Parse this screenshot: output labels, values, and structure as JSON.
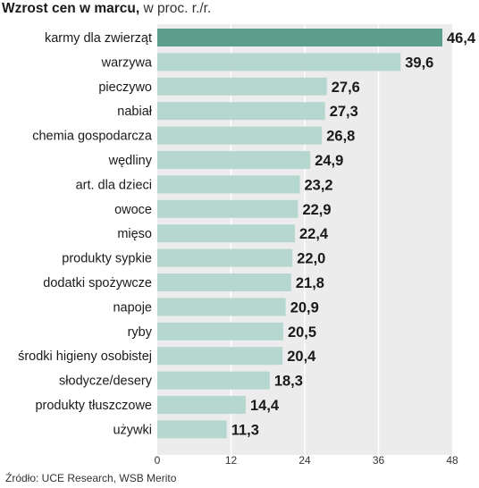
{
  "title": {
    "bold": "Wzrost cen w marcu,",
    "normal": "w proc. r./r."
  },
  "source": "Źródło: UCE Research, WSB Merito",
  "colors": {
    "highlight_bar": "#5b9e8c",
    "bar": "#b6d7cf",
    "panel": "#ececec",
    "gridline": "#ffffff"
  },
  "chart_data": {
    "type": "bar",
    "orientation": "horizontal",
    "categories": [
      "karmy dla zwierząt",
      "warzywa",
      "pieczywo",
      "nabiał",
      "chemia gospodarcza",
      "wędliny",
      "art. dla dzieci",
      "owoce",
      "mięso",
      "produkty sypkie",
      "dodatki spożywcze",
      "napoje",
      "ryby",
      "środki higieny osobistej",
      "słodycze/desery",
      "produkty tłuszczowe",
      "używki"
    ],
    "values": [
      46.4,
      39.6,
      27.6,
      27.3,
      26.8,
      24.9,
      23.2,
      22.9,
      22.4,
      22.0,
      21.8,
      20.9,
      20.5,
      20.4,
      18.3,
      14.4,
      11.3
    ],
    "value_labels": [
      "46,4",
      "39,6",
      "27,6",
      "27,3",
      "26,8",
      "24,9",
      "23,2",
      "22,9",
      "22,4",
      "22,0",
      "21,8",
      "20,9",
      "20,5",
      "20,4",
      "18,3",
      "14,4",
      "11,3"
    ],
    "highlight_index": 0,
    "xlim": [
      0,
      48
    ],
    "xticks": [
      0,
      12,
      24,
      36,
      48
    ],
    "grid": true,
    "legend": "none"
  }
}
